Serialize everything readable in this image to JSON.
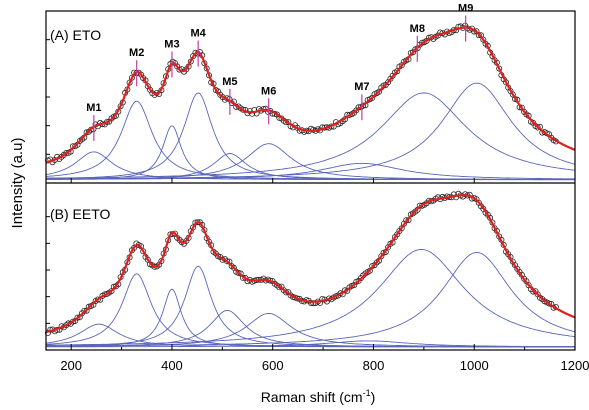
{
  "chart_data": {
    "type": "line",
    "xlabel": "Raman shift (cm",
    "xlabel_sup": "-1",
    "xlabel_end": ")",
    "ylabel": "Intensity (a.u)",
    "xlim": [
      150,
      1200
    ],
    "x_ticks": [
      200,
      400,
      600,
      800,
      1000,
      1200
    ],
    "x_tick_labels": [
      "200",
      "400",
      "600",
      "800",
      "1000",
      "1200"
    ],
    "grid": false,
    "colors": {
      "fit": "#e02020",
      "component": "#5a66bb",
      "marker": "#2a2a2a",
      "label_line": "#c040a0",
      "axis": "#000000"
    },
    "panels": [
      {
        "label": "(A) ETO",
        "mode_labels": [
          {
            "text": "M1",
            "x": 245
          },
          {
            "text": "M2",
            "x": 330
          },
          {
            "text": "M3",
            "x": 400
          },
          {
            "text": "M4",
            "x": 452
          },
          {
            "text": "M5",
            "x": 515
          },
          {
            "text": "M6",
            "x": 592
          },
          {
            "text": "M7",
            "x": 777
          },
          {
            "text": "M8",
            "x": 887
          },
          {
            "text": "M9",
            "x": 983
          }
        ],
        "ylim": [
          0,
          1.05
        ],
        "baseline": 0.04,
        "components": [
          {
            "center": 245,
            "width": 90,
            "amp": 0.17
          },
          {
            "center": 330,
            "width": 75,
            "amp": 0.48
          },
          {
            "center": 400,
            "width": 45,
            "amp": 0.33
          },
          {
            "center": 452,
            "width": 70,
            "amp": 0.53
          },
          {
            "center": 515,
            "width": 80,
            "amp": 0.16
          },
          {
            "center": 592,
            "width": 110,
            "amp": 0.22
          },
          {
            "center": 777,
            "width": 200,
            "amp": 0.1
          },
          {
            "center": 900,
            "width": 210,
            "amp": 0.53
          },
          {
            "center": 1005,
            "width": 170,
            "amp": 0.59
          }
        ]
      },
      {
        "label": "(B) EETO",
        "mode_labels": [],
        "ylim": [
          0,
          1.05
        ],
        "baseline": 0.04,
        "components": [
          {
            "center": 255,
            "width": 95,
            "amp": 0.15
          },
          {
            "center": 330,
            "width": 70,
            "amp": 0.48
          },
          {
            "center": 400,
            "width": 45,
            "amp": 0.38
          },
          {
            "center": 452,
            "width": 65,
            "amp": 0.53
          },
          {
            "center": 510,
            "width": 85,
            "amp": 0.24
          },
          {
            "center": 592,
            "width": 110,
            "amp": 0.22
          },
          {
            "center": 790,
            "width": 200,
            "amp": 0.04
          },
          {
            "center": 895,
            "width": 210,
            "amp": 0.64
          },
          {
            "center": 1005,
            "width": 170,
            "amp": 0.62
          }
        ]
      }
    ]
  }
}
